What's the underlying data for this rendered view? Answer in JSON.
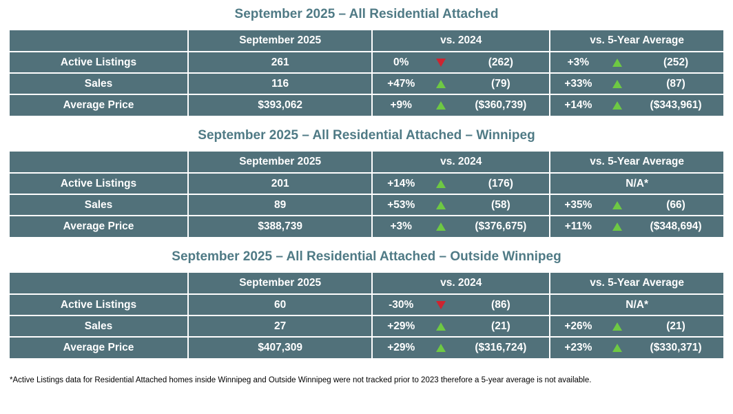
{
  "colors": {
    "table-bg": "#51717A",
    "title-text": "#4F7A85",
    "up-green": "#6EC943",
    "down-red": "#CE2430",
    "table-text": "#FFFFFF",
    "footnote-text": "#000000"
  },
  "footnote": "*Active Listings data for Residential Attached homes inside Winnipeg and Outside Winnipeg were not tracked prior to 2023 therefore a 5-year average is not available.",
  "tables": [
    {
      "title": "September 2025 – All Residential Attached",
      "columns": {
        "metric": "",
        "current": "September 2025",
        "vs2024": "vs. 2024",
        "vs5yr": "vs. 5-Year Average"
      },
      "rows": [
        {
          "label": "Active Listings",
          "current": "261",
          "vs2024": {
            "pct": "0%",
            "dir": "down",
            "ref": "(262)"
          },
          "vs5yr": {
            "pct": "+3%",
            "dir": "up",
            "ref": "(252)"
          }
        },
        {
          "label": "Sales",
          "current": "116",
          "vs2024": {
            "pct": "+47%",
            "dir": "up",
            "ref": "(79)"
          },
          "vs5yr": {
            "pct": "+33%",
            "dir": "up",
            "ref": "(87)"
          }
        },
        {
          "label": "Average Price",
          "current": "$393,062",
          "vs2024": {
            "pct": "+9%",
            "dir": "up",
            "ref": "($360,739)"
          },
          "vs5yr": {
            "pct": "+14%",
            "dir": "up",
            "ref": "($343,961)"
          }
        }
      ]
    },
    {
      "title": "September 2025 – All Residential Attached – Winnipeg",
      "columns": {
        "metric": "",
        "current": "September 2025",
        "vs2024": "vs. 2024",
        "vs5yr": "vs. 5-Year Average"
      },
      "rows": [
        {
          "label": "Active Listings",
          "current": "201",
          "vs2024": {
            "pct": "+14%",
            "dir": "up",
            "ref": "(176)"
          },
          "vs5yr": {
            "na": "N/A*"
          }
        },
        {
          "label": "Sales",
          "current": "89",
          "vs2024": {
            "pct": "+53%",
            "dir": "up",
            "ref": "(58)"
          },
          "vs5yr": {
            "pct": "+35%",
            "dir": "up",
            "ref": "(66)"
          }
        },
        {
          "label": "Average Price",
          "current": "$388,739",
          "vs2024": {
            "pct": "+3%",
            "dir": "up",
            "ref": "($376,675)"
          },
          "vs5yr": {
            "pct": "+11%",
            "dir": "up",
            "ref": "($348,694)"
          }
        }
      ]
    },
    {
      "title": "September 2025 – All Residential Attached – Outside Winnipeg",
      "columns": {
        "metric": "",
        "current": "September 2025",
        "vs2024": "vs. 2024",
        "vs5yr": "vs. 5-Year Average"
      },
      "rows": [
        {
          "label": "Active Listings",
          "current": "60",
          "vs2024": {
            "pct": "-30%",
            "dir": "down",
            "ref": "(86)"
          },
          "vs5yr": {
            "na": "N/A*"
          }
        },
        {
          "label": "Sales",
          "current": "27",
          "vs2024": {
            "pct": "+29%",
            "dir": "up",
            "ref": "(21)"
          },
          "vs5yr": {
            "pct": "+26%",
            "dir": "up",
            "ref": "(21)"
          }
        },
        {
          "label": "Average Price",
          "current": "$407,309",
          "vs2024": {
            "pct": "+29%",
            "dir": "up",
            "ref": "($316,724)"
          },
          "vs5yr": {
            "pct": "+23%",
            "dir": "up",
            "ref": "($330,371)"
          }
        }
      ]
    }
  ]
}
